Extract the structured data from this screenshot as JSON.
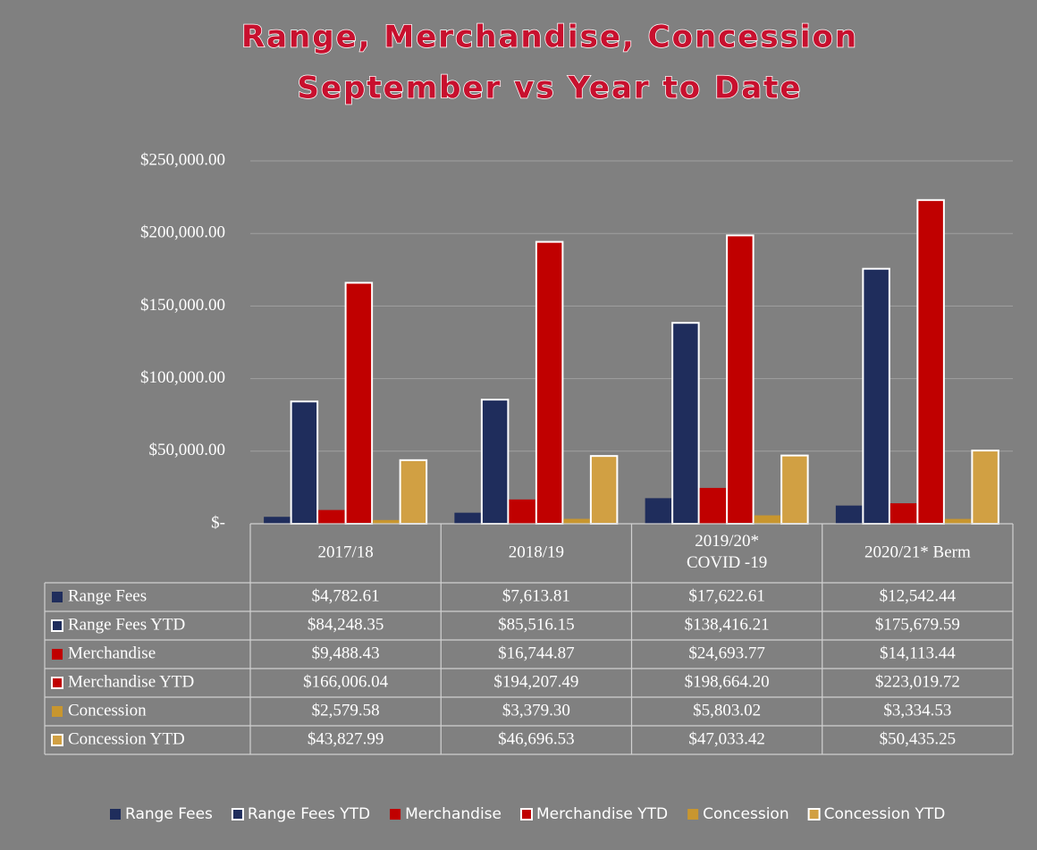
{
  "chart_data": {
    "type": "bar",
    "title": "Range, Merchandise, Concession",
    "subtitle": "September vs Year to Date",
    "categories": [
      "2017/18",
      "2018/19",
      "2019/20*\nCOVID -19",
      "2020/21* Berm"
    ],
    "series": [
      {
        "name": "Range Fees",
        "color": "#1f2d5c",
        "outline": false,
        "values": [
          4782.61,
          7613.81,
          17622.61,
          12542.44
        ],
        "value_labels": [
          "$4,782.61",
          "$7,613.81",
          "$17,622.61",
          "$12,542.44"
        ]
      },
      {
        "name": "Range Fees YTD",
        "color": "#1f2d5c",
        "outline": true,
        "values": [
          84248.35,
          85516.15,
          138416.21,
          175679.59
        ],
        "value_labels": [
          "$84,248.35",
          "$85,516.15",
          "$138,416.21",
          "$175,679.59"
        ]
      },
      {
        "name": "Merchandise",
        "color": "#c00000",
        "outline": false,
        "values": [
          9488.43,
          16744.87,
          24693.77,
          14113.44
        ],
        "value_labels": [
          "$9,488.43",
          "$16,744.87",
          "$24,693.77",
          "$14,113.44"
        ]
      },
      {
        "name": "Merchandise YTD",
        "color": "#c00000",
        "outline": true,
        "values": [
          166006.04,
          194207.49,
          198664.2,
          223019.72
        ],
        "value_labels": [
          "$166,006.04",
          "$194,207.49",
          "$198,664.20",
          "$223,019.72"
        ]
      },
      {
        "name": "Concession",
        "color": "#c8962f",
        "outline": false,
        "values": [
          2579.58,
          3379.3,
          5803.02,
          3334.53
        ],
        "value_labels": [
          "$2,579.58",
          "$3,379.30",
          "$5,803.02",
          "$3,334.53"
        ]
      },
      {
        "name": "Concession YTD",
        "color": "#d1a043",
        "outline": true,
        "values": [
          43827.99,
          46696.53,
          47033.42,
          50435.25
        ],
        "value_labels": [
          "$43,827.99",
          "$46,696.53",
          "$47,033.42",
          "$50,435.25"
        ]
      }
    ],
    "ylim": [
      0,
      250000
    ],
    "yticks": [
      {
        "value": 0,
        "label": "$-"
      },
      {
        "value": 50000,
        "label": "$50,000.00"
      },
      {
        "value": 100000,
        "label": "$100,000.00"
      },
      {
        "value": 150000,
        "label": "$150,000.00"
      },
      {
        "value": 200000,
        "label": "$200,000.00"
      },
      {
        "value": 250000,
        "label": "$250,000.00"
      }
    ],
    "grid": true,
    "legend": "bottom"
  }
}
